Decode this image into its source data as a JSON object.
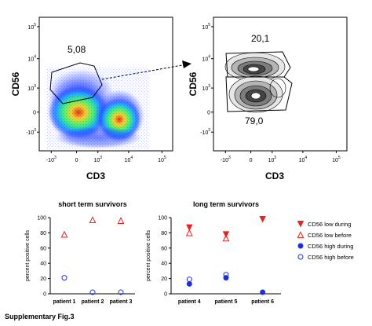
{
  "figure_caption": "Supplementary Fig.3",
  "colors": {
    "red": "#e8231f",
    "blue": "#1f2fd6",
    "axis": "#000000"
  },
  "flow_panels": [
    {
      "id": "flow-left",
      "xlabel": "CD3",
      "ylabel": "CD56",
      "x_ticks": [
        {
          "base": "-10",
          "exp": "3"
        },
        {
          "base": "0",
          "exp": ""
        },
        {
          "base": "10",
          "exp": "3"
        },
        {
          "base": "10",
          "exp": "4"
        },
        {
          "base": "10",
          "exp": "5"
        }
      ],
      "y_ticks": [
        {
          "base": "10",
          "exp": "5"
        },
        {
          "base": "10",
          "exp": "4"
        },
        {
          "base": "10",
          "exp": "3"
        },
        {
          "base": "0",
          "exp": ""
        },
        {
          "base": "-10",
          "exp": "3"
        }
      ],
      "gate_labels": [
        "5,08"
      ],
      "style": "pseudocolor density"
    },
    {
      "id": "flow-right",
      "xlabel": "CD3",
      "ylabel": "CD56",
      "x_ticks": [
        {
          "base": "-10",
          "exp": "3"
        },
        {
          "base": "0",
          "exp": ""
        },
        {
          "base": "10",
          "exp": "3"
        },
        {
          "base": "10",
          "exp": "4"
        },
        {
          "base": "10",
          "exp": "5"
        }
      ],
      "y_ticks": [
        {
          "base": "10",
          "exp": "5"
        },
        {
          "base": "10",
          "exp": "4"
        },
        {
          "base": "10",
          "exp": "3"
        },
        {
          "base": "0",
          "exp": ""
        },
        {
          "base": "-10",
          "exp": "3"
        }
      ],
      "gate_labels": [
        "20,1",
        "79,0"
      ],
      "style": "contour"
    }
  ],
  "chart_data": [
    {
      "type": "scatter",
      "title": "short term survivors",
      "ylabel": "percent positive cells",
      "ylim": [
        0,
        100
      ],
      "yticks": [
        0,
        20,
        40,
        60,
        80,
        100
      ],
      "categories": [
        "patient 1",
        "patient 2",
        "patient 3"
      ],
      "series": [
        {
          "name": "CD56 low during",
          "values": [
            null,
            null,
            null
          ]
        },
        {
          "name": "CD56 low before",
          "values": [
            78,
            97,
            96
          ]
        },
        {
          "name": "CD56 high during",
          "values": [
            null,
            null,
            null
          ]
        },
        {
          "name": "CD56 high before",
          "values": [
            21,
            2,
            2
          ]
        }
      ]
    },
    {
      "type": "scatter",
      "title": "long term survivors",
      "ylabel": "percent positive cells",
      "ylim": [
        0,
        100
      ],
      "yticks": [
        0,
        20,
        40,
        60,
        80,
        100
      ],
      "categories": [
        "patient 4",
        "patient 5",
        "patient 6"
      ],
      "series": [
        {
          "name": "CD56 low during",
          "values": [
            87,
            78,
            98
          ]
        },
        {
          "name": "CD56 low before",
          "values": [
            80,
            73,
            null
          ]
        },
        {
          "name": "CD56 high during",
          "values": [
            13,
            21,
            2
          ]
        },
        {
          "name": "CD56 high before",
          "values": [
            19,
            25,
            null
          ]
        }
      ]
    }
  ],
  "legend": {
    "placement": "right",
    "items": [
      {
        "label": "CD56 low during",
        "marker": "triangle-down-filled",
        "color": "#e8231f"
      },
      {
        "label": "CD56 low before",
        "marker": "triangle-up-open",
        "color": "#e8231f"
      },
      {
        "label": "CD56 high during",
        "marker": "circle-filled",
        "color": "#1f2fd6"
      },
      {
        "label": "CD56 high before",
        "marker": "circle-open",
        "color": "#1f2fd6"
      }
    ]
  }
}
